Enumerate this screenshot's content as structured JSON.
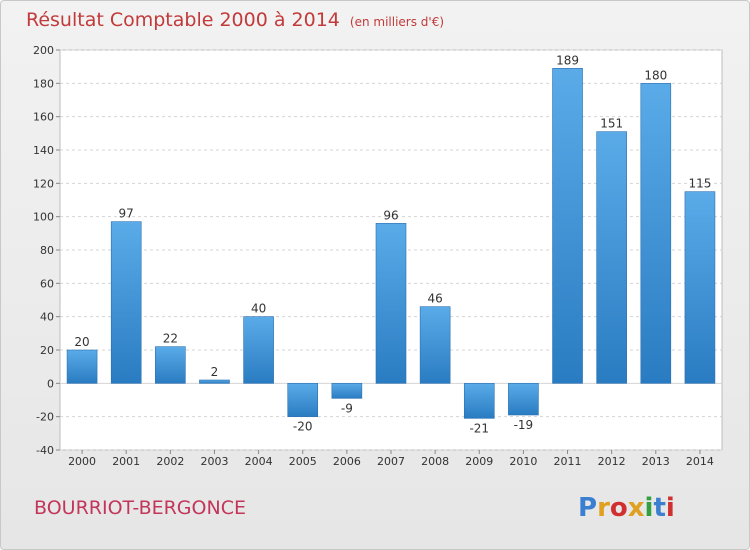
{
  "chart_data": {
    "type": "bar",
    "title": "Résultat Comptable 2000 à 2014",
    "subtitle": "(en milliers d'€)",
    "categories": [
      "2000",
      "2001",
      "2002",
      "2003",
      "2004",
      "2005",
      "2006",
      "2007",
      "2008",
      "2009",
      "2010",
      "2011",
      "2012",
      "2013",
      "2014"
    ],
    "values": [
      20,
      97,
      22,
      2,
      40,
      -20,
      -9,
      96,
      46,
      -21,
      -19,
      189,
      151,
      180,
      115
    ],
    "ylim": [
      -40,
      200
    ],
    "yticks": [
      -40,
      -20,
      0,
      20,
      40,
      60,
      80,
      100,
      120,
      140,
      160,
      180,
      200
    ],
    "xlabel": "",
    "ylabel": "",
    "grid": true,
    "bar_color": "#3a8fd4"
  },
  "footer": {
    "town": "BOURRIOT-BERGONCE",
    "brand": "Proxiti",
    "brand_colors": [
      "#3a7fd0",
      "#e0a020",
      "#d03030",
      "#e0a020",
      "#30a040",
      "#3a7fd0",
      "#d03030"
    ]
  }
}
